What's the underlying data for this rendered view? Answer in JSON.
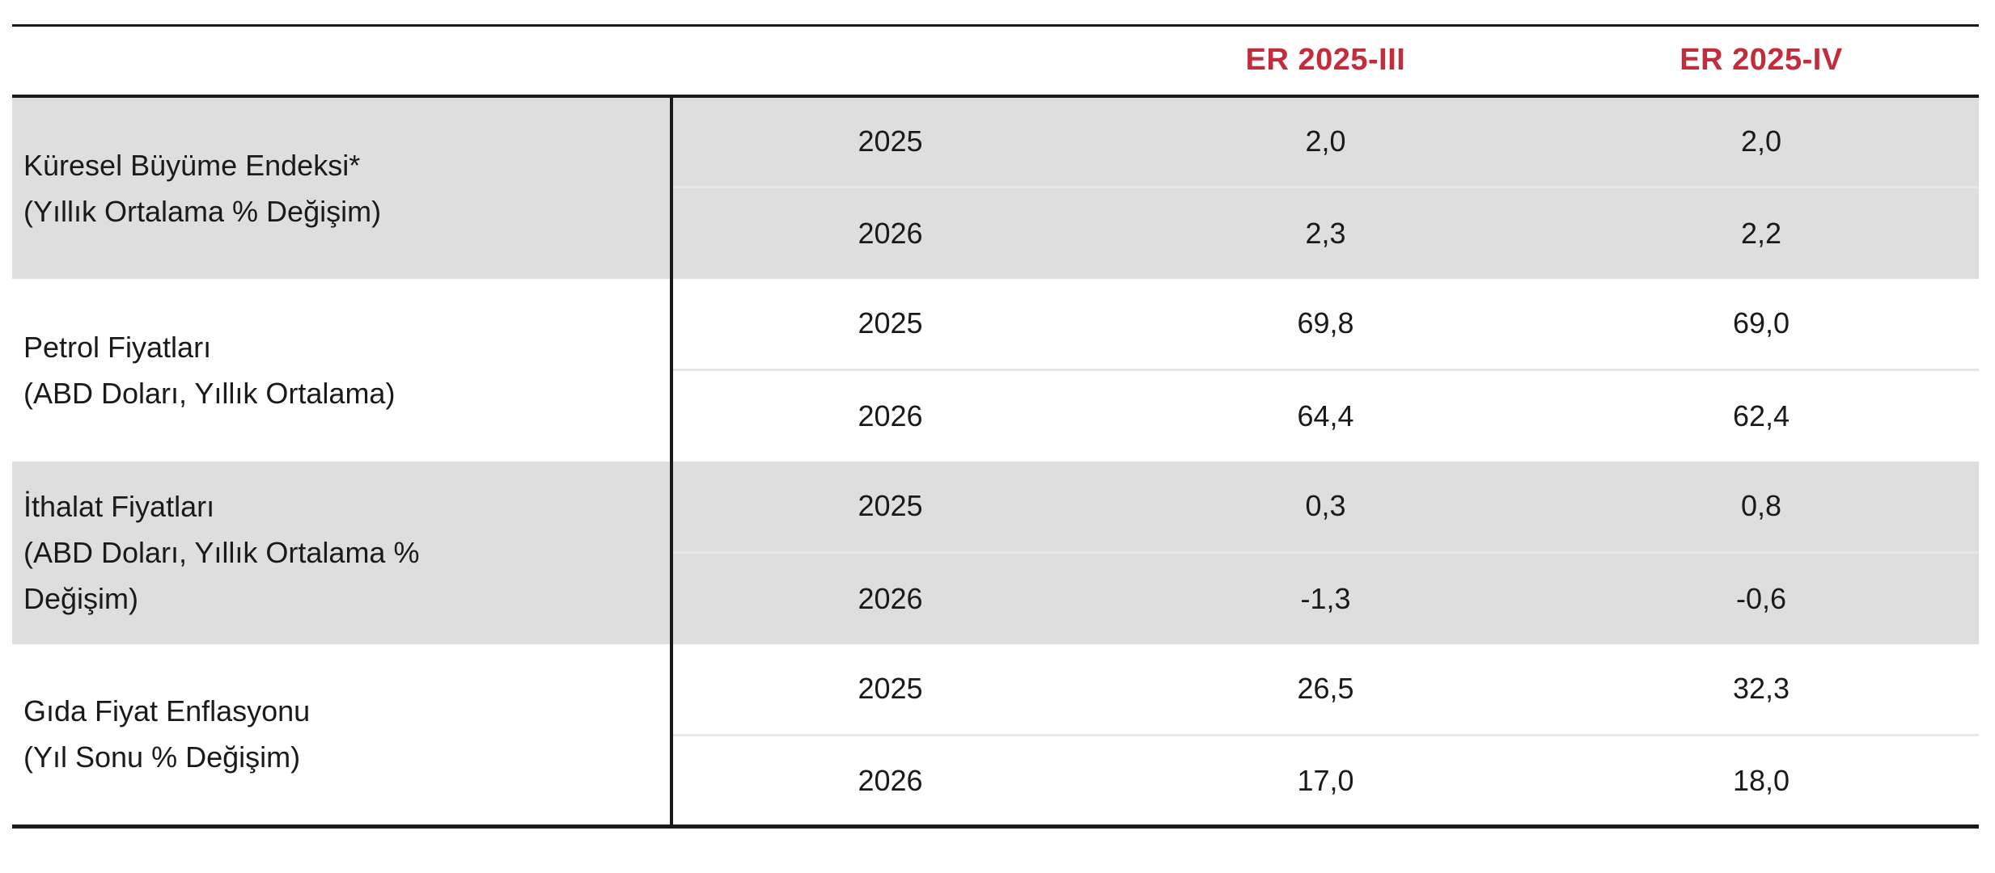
{
  "colors": {
    "accent_red": "#C22D3C",
    "row_shade_gray": "#DEDEDE",
    "rule_black": "#1A1A1A",
    "row_separator_gray": "#E7E7E7"
  },
  "table": {
    "header_columns": [
      "ER 2025-III",
      "ER 2025-IV"
    ],
    "groups": [
      {
        "label_lines": [
          "Küresel Büyüme Endeksi*",
          "(Yıllık Ortalama % Değişim)"
        ],
        "rows": [
          {
            "year": "2025",
            "values": [
              "2,0",
              "2,0"
            ]
          },
          {
            "year": "2026",
            "values": [
              "2,3",
              "2,2"
            ]
          }
        ]
      },
      {
        "label_lines": [
          "Petrol Fiyatları",
          "(ABD Doları, Yıllık Ortalama)"
        ],
        "rows": [
          {
            "year": "2025",
            "values": [
              "69,8",
              "69,0"
            ]
          },
          {
            "year": "2026",
            "values": [
              "64,4",
              "62,4"
            ]
          }
        ]
      },
      {
        "label_lines": [
          "İthalat Fiyatları",
          "(ABD Doları, Yıllık Ortalama %",
          "Değişim)"
        ],
        "rows": [
          {
            "year": "2025",
            "values": [
              "0,3",
              "0,8"
            ]
          },
          {
            "year": "2026",
            "values": [
              "-1,3",
              "-0,6"
            ]
          }
        ]
      },
      {
        "label_lines": [
          "Gıda Fiyat Enflasyonu",
          "(Yıl Sonu % Değişim)"
        ],
        "rows": [
          {
            "year": "2025",
            "values": [
              "26,5",
              "32,3"
            ]
          },
          {
            "year": "2026",
            "values": [
              "17,0",
              "18,0"
            ]
          }
        ]
      }
    ]
  }
}
